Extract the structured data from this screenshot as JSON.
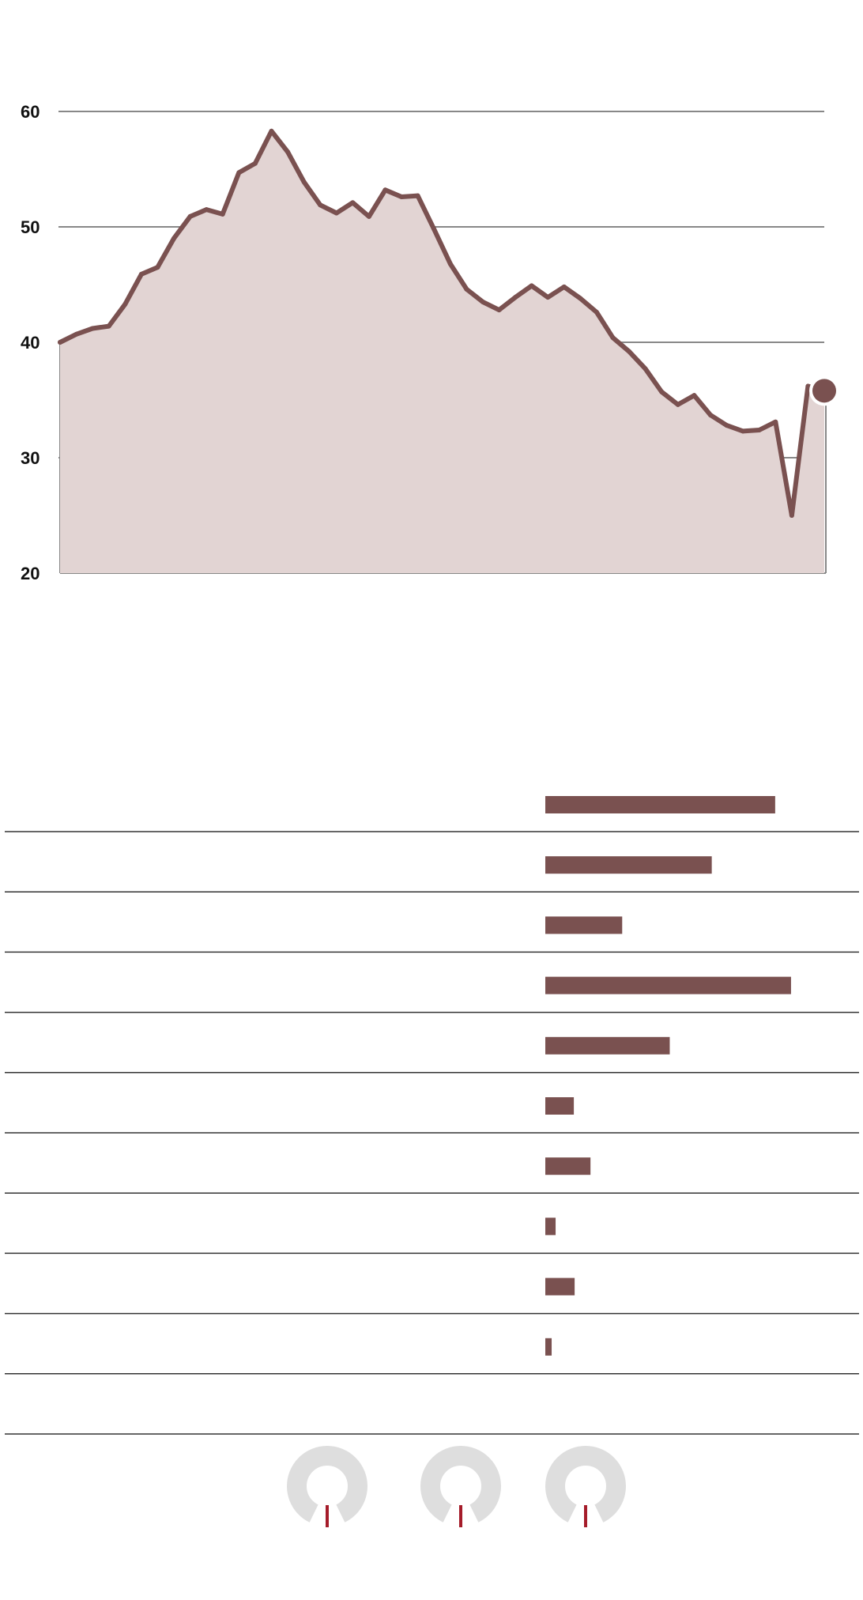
{
  "colors": {
    "line": "#7a5150",
    "area": "#e2d4d3",
    "grid": "#888888",
    "bar": "#7a5150",
    "row_rule": "#333333",
    "gauge_ring": "#dedede",
    "gauge_needle": "#a51c2a"
  },
  "chart_data": [
    {
      "type": "area",
      "title": "",
      "xlabel": "",
      "ylabel": "",
      "ylim": [
        20,
        60
      ],
      "yticks": [
        "20",
        "30",
        "40",
        "50",
        "60"
      ],
      "grid": true,
      "series": [
        {
          "values": [
            40.0,
            40.7,
            41.2,
            41.4,
            43.3,
            45.9,
            46.5,
            49.0,
            50.9,
            51.5,
            51.1,
            54.7,
            55.5,
            58.3,
            56.5,
            53.9,
            51.9,
            51.2,
            52.1,
            50.9,
            53.2,
            52.6,
            52.7,
            49.8,
            46.8,
            44.6,
            43.5,
            42.8,
            43.9,
            44.9,
            43.9,
            44.8,
            43.8,
            42.6,
            40.4,
            39.2,
            37.7,
            35.7,
            34.6,
            35.4,
            33.7,
            32.8,
            32.3,
            32.4,
            33.1,
            25.0,
            36.2,
            35.8
          ]
        }
      ],
      "highlight_last": true
    },
    {
      "type": "bar",
      "orientation": "horizontal",
      "categories": [
        "",
        "",
        "",
        "",
        "",
        "",
        "",
        "",
        "",
        "",
        ""
      ],
      "values": [
        29,
        21,
        9.7,
        31,
        15.7,
        3.6,
        5.7,
        1.3,
        3.7,
        0.8,
        0
      ]
    },
    {
      "type": "gauge",
      "values": [
        0,
        0,
        0
      ]
    }
  ]
}
